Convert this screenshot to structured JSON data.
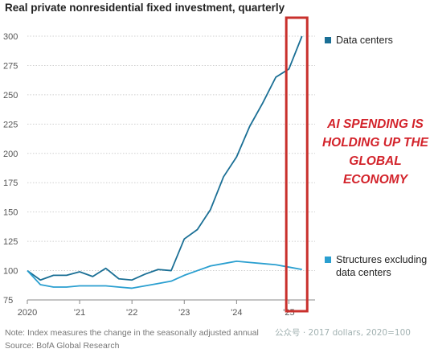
{
  "chart_data": {
    "type": "line",
    "title": "Real private nonresidential fixed investment, quarterly",
    "xlabel": "",
    "ylabel": "",
    "ylim": [
      75,
      300
    ],
    "yticks": [
      75,
      100,
      125,
      150,
      175,
      200,
      225,
      250,
      275,
      300
    ],
    "xticks": [
      {
        "label": "2020",
        "value": 2020.0
      },
      {
        "label": "'21",
        "value": 2021.0
      },
      {
        "label": "'22",
        "value": 2022.0
      },
      {
        "label": "'23",
        "value": 2023.0
      },
      {
        "label": "'24",
        "value": 2024.0
      },
      {
        "label": "'25",
        "value": 2025.0
      }
    ],
    "x": [
      2020.0,
      2020.25,
      2020.5,
      2020.75,
      2021.0,
      2021.25,
      2021.5,
      2021.75,
      2022.0,
      2022.25,
      2022.5,
      2022.75,
      2023.0,
      2023.25,
      2023.5,
      2023.75,
      2024.0,
      2024.25,
      2024.5,
      2024.75,
      2025.0,
      2025.25
    ],
    "series": [
      {
        "name": "Data centers",
        "color": "#1a6f95",
        "values": [
          100,
          92,
          96,
          96,
          99,
          95,
          102,
          93,
          92,
          97,
          101,
          100,
          127,
          135,
          152,
          180,
          197,
          223,
          243,
          265,
          272,
          300
        ]
      },
      {
        "name": "Structures excluding data centers",
        "color": "#2a9fd0",
        "values": [
          100,
          88,
          86,
          86,
          87,
          87,
          87,
          86,
          85,
          87,
          89,
          91,
          96,
          100,
          104,
          106,
          108,
          107,
          106,
          105,
          103,
          101
        ]
      }
    ],
    "legend": [
      {
        "label": "Data centers",
        "color": "#1a6f95"
      },
      {
        "label": "Structures excluding",
        "label2": "data centers",
        "color": "#2a9fd0"
      }
    ],
    "legend_position": "right",
    "grid": "horizontal",
    "highlight": {
      "color": "#c9302c",
      "x_range": [
        2024.95,
        2025.35
      ]
    },
    "annotation": {
      "lines": [
        "AI SPENDING IS",
        "HOLDING UP THE",
        "GLOBAL",
        "ECONOMY"
      ],
      "color": "#d3232b"
    }
  },
  "footnotes": {
    "note": "Note: Index measures the change in the seasonally adjusted annual",
    "source": "Source: BofA Global Research"
  },
  "watermark": "公众号 · 2017 dollars, 2020=100"
}
